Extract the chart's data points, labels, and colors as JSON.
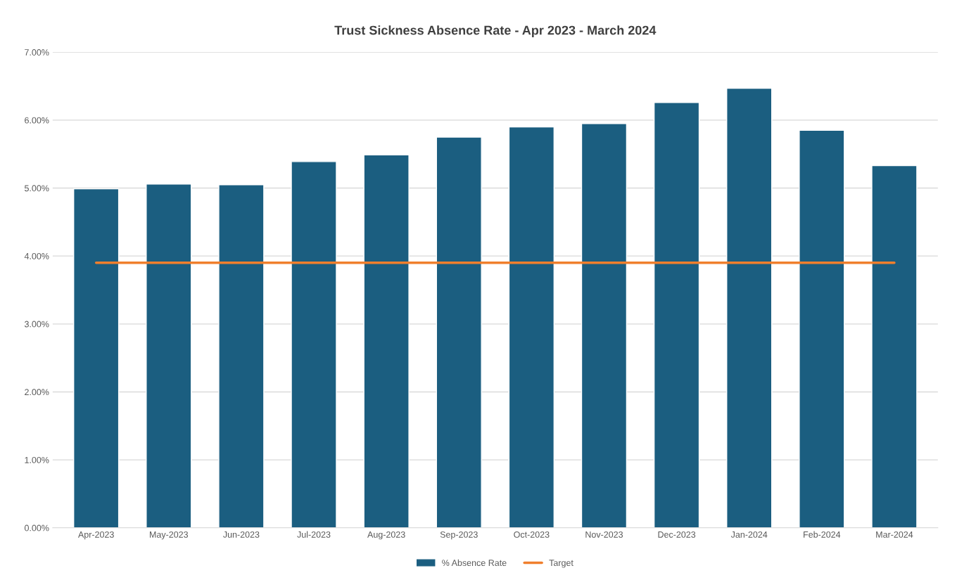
{
  "chart_data": {
    "type": "bar",
    "title": "Trust Sickness Absence Rate - Apr 2023 - March 2024",
    "categories": [
      "Apr-2023",
      "May-2023",
      "Jun-2023",
      "Jul-2023",
      "Aug-2023",
      "Sep-2023",
      "Oct-2023",
      "Nov-2023",
      "Dec-2023",
      "Jan-2024",
      "Feb-2024",
      "Mar-2024"
    ],
    "series": [
      {
        "name": "% Absence Rate",
        "color": "#1b5e80",
        "values": [
          4.99,
          5.06,
          5.05,
          5.39,
          5.49,
          5.75,
          5.9,
          5.95,
          6.26,
          6.47,
          5.85,
          5.33
        ]
      },
      {
        "name": "Target",
        "type": "line",
        "color": "#f07f2d",
        "values": [
          3.9,
          3.9,
          3.9,
          3.9,
          3.9,
          3.9,
          3.9,
          3.9,
          3.9,
          3.9,
          3.9,
          3.9
        ]
      }
    ],
    "ylim": [
      0,
      7
    ],
    "yticks": [
      {
        "value": 0,
        "label": "0.00%"
      },
      {
        "value": 1,
        "label": "1.00%"
      },
      {
        "value": 2,
        "label": "2.00%"
      },
      {
        "value": 3,
        "label": "3.00%"
      },
      {
        "value": 4,
        "label": "4.00%"
      },
      {
        "value": 5,
        "label": "5.00%"
      },
      {
        "value": 6,
        "label": "6.00%"
      },
      {
        "value": 7,
        "label": "7.00%"
      }
    ],
    "grid": "y",
    "legend": "bottom",
    "marker": "none"
  }
}
